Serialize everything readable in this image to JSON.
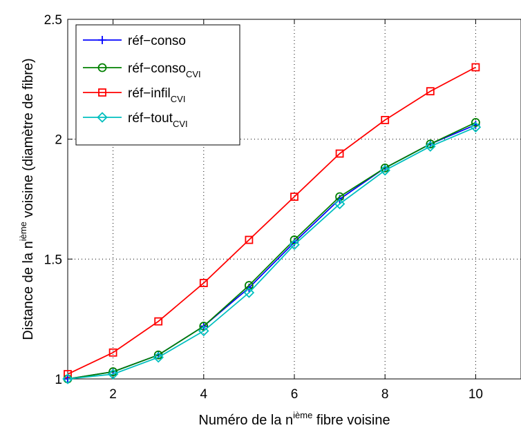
{
  "chart_data": {
    "type": "line",
    "xlabel": {
      "pre": "Numéro de la n",
      "sup": "ième",
      "post": " fibre voisine"
    },
    "ylabel": {
      "pre": "Distance de la n",
      "sup": "ième",
      "post": " voisine (diamètre de fibre)"
    },
    "xlim": [
      1,
      11
    ],
    "ylim": [
      1,
      2.5
    ],
    "xticks": [
      2,
      4,
      6,
      8,
      10
    ],
    "xtick_labels": [
      "2",
      "4",
      "6",
      "8",
      "10"
    ],
    "yticks": [
      1,
      1.5,
      2,
      2.5
    ],
    "ytick_labels": [
      "1",
      "1.5",
      "2",
      "2.5"
    ],
    "grid": true,
    "legend_position": "top-left",
    "x": [
      1,
      2,
      3,
      4,
      5,
      6,
      7,
      8,
      9,
      10
    ],
    "series": [
      {
        "name": "réf−conso",
        "subscript": "",
        "color": "#0000ff",
        "marker": "plus",
        "values": [
          1.0,
          1.03,
          1.1,
          1.22,
          1.38,
          1.57,
          1.75,
          1.88,
          1.98,
          2.06
        ]
      },
      {
        "name": "réf−conso",
        "subscript": "CVI",
        "color": "#008000",
        "marker": "circle",
        "values": [
          1.0,
          1.03,
          1.1,
          1.22,
          1.39,
          1.58,
          1.76,
          1.88,
          1.98,
          2.07
        ]
      },
      {
        "name": "réf−infil",
        "subscript": "CVI",
        "color": "#ff0000",
        "marker": "square",
        "values": [
          1.02,
          1.11,
          1.24,
          1.4,
          1.58,
          1.76,
          1.94,
          2.08,
          2.2,
          2.3
        ]
      },
      {
        "name": "réf−tout",
        "subscript": "CVI",
        "color": "#00bfbf",
        "marker": "diamond",
        "values": [
          1.0,
          1.02,
          1.09,
          1.2,
          1.36,
          1.56,
          1.73,
          1.87,
          1.97,
          2.05
        ]
      }
    ]
  }
}
